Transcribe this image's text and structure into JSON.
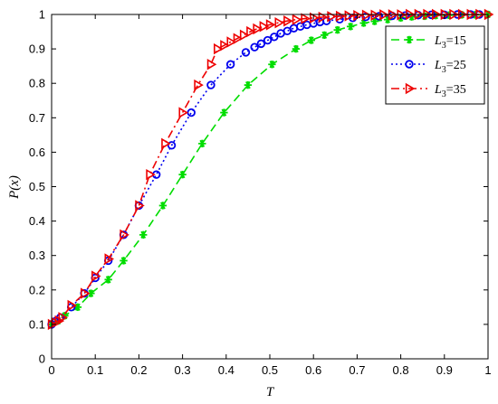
{
  "chart_data": {
    "type": "line",
    "xlabel": "T",
    "ylabel": "P(x)",
    "xlim": [
      0,
      1
    ],
    "ylim": [
      0,
      1
    ],
    "xticks": [
      "0",
      "0.1",
      "0.2",
      "0.3",
      "0.4",
      "0.5",
      "0.6",
      "0.7",
      "0.8",
      "0.9",
      "1"
    ],
    "yticks": [
      "0",
      "0.1",
      "0.2",
      "0.3",
      "0.4",
      "0.5",
      "0.6",
      "0.7",
      "0.8",
      "0.9",
      "1"
    ],
    "legend_position": "top-right",
    "series": [
      {
        "legend_sym": "L",
        "legend_sub": "3",
        "legend_val": "=15",
        "color": "#00dd00",
        "line_style": "dashed",
        "marker": "asterisk",
        "x": [
          0,
          0.015,
          0.03,
          0.06,
          0.09,
          0.13,
          0.165,
          0.21,
          0.255,
          0.3,
          0.345,
          0.395,
          0.45,
          0.505,
          0.56,
          0.595,
          0.625,
          0.655,
          0.685,
          0.715,
          0.74,
          0.77,
          0.8,
          0.825,
          0.855,
          0.88,
          0.91,
          0.94,
          0.97,
          1.0
        ],
        "y": [
          0.1,
          0.11,
          0.125,
          0.15,
          0.19,
          0.23,
          0.285,
          0.36,
          0.445,
          0.535,
          0.625,
          0.715,
          0.795,
          0.855,
          0.9,
          0.925,
          0.94,
          0.955,
          0.965,
          0.975,
          0.98,
          0.985,
          0.99,
          0.993,
          0.995,
          0.997,
          0.998,
          0.999,
          0.999,
          1.0
        ]
      },
      {
        "legend_sym": "L",
        "legend_sub": "3",
        "legend_val": "=25",
        "color": "#0000ee",
        "line_style": "dotted",
        "marker": "circle",
        "x": [
          0,
          0.01,
          0.02,
          0.045,
          0.075,
          0.1,
          0.13,
          0.165,
          0.2,
          0.24,
          0.275,
          0.32,
          0.365,
          0.41,
          0.445,
          0.465,
          0.48,
          0.495,
          0.51,
          0.525,
          0.54,
          0.555,
          0.57,
          0.585,
          0.6,
          0.615,
          0.63,
          0.66,
          0.69,
          0.72,
          0.75,
          0.78,
          0.81,
          0.84,
          0.87,
          0.9,
          0.93,
          0.96,
          0.98
        ],
        "y": [
          0.1,
          0.11,
          0.12,
          0.15,
          0.19,
          0.235,
          0.285,
          0.36,
          0.445,
          0.535,
          0.62,
          0.715,
          0.795,
          0.855,
          0.89,
          0.905,
          0.915,
          0.925,
          0.935,
          0.945,
          0.952,
          0.96,
          0.965,
          0.97,
          0.974,
          0.978,
          0.981,
          0.986,
          0.99,
          0.993,
          0.995,
          0.996,
          0.997,
          0.998,
          0.999,
          0.999,
          1.0,
          1.0,
          1.0
        ]
      },
      {
        "legend_sym": "L",
        "legend_sub": "3",
        "legend_val": "=35",
        "color": "#ee0000",
        "line_style": "dashdot",
        "marker": "triangle",
        "x": [
          0,
          0.008,
          0.016,
          0.024,
          0.045,
          0.075,
          0.1,
          0.13,
          0.165,
          0.2,
          0.225,
          0.26,
          0.3,
          0.335,
          0.365,
          0.38,
          0.395,
          0.41,
          0.425,
          0.44,
          0.455,
          0.47,
          0.485,
          0.5,
          0.52,
          0.54,
          0.56,
          0.58,
          0.6,
          0.62,
          0.64,
          0.66,
          0.68,
          0.7,
          0.72,
          0.74,
          0.76,
          0.78,
          0.8,
          0.82,
          0.84,
          0.86,
          0.88,
          0.9,
          0.92,
          0.94,
          0.96,
          0.98,
          1.0
        ],
        "y": [
          0.1,
          0.105,
          0.11,
          0.12,
          0.155,
          0.19,
          0.24,
          0.29,
          0.36,
          0.445,
          0.535,
          0.625,
          0.715,
          0.795,
          0.855,
          0.9,
          0.91,
          0.92,
          0.93,
          0.94,
          0.95,
          0.958,
          0.965,
          0.97,
          0.976,
          0.981,
          0.985,
          0.988,
          0.99,
          0.992,
          0.994,
          0.995,
          0.996,
          0.997,
          0.998,
          0.998,
          0.999,
          0.999,
          0.999,
          1.0,
          1.0,
          1.0,
          1.0,
          1.0,
          1.0,
          1.0,
          1.0,
          1.0,
          1.0
        ]
      }
    ]
  }
}
